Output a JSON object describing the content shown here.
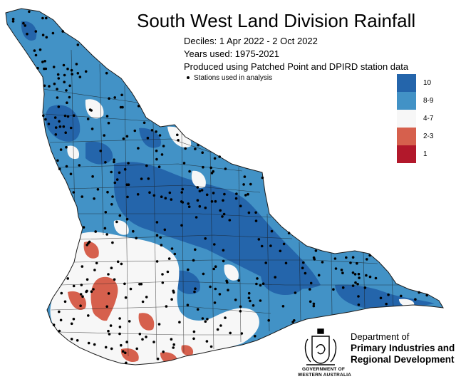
{
  "title": "South West Land Division Rainfall",
  "subtitle": {
    "period": "Deciles:  1 Apr 2022 -  2 Oct 2022",
    "years": "Years used: 1975-2021",
    "source": "Produced using Patched Point and DPIRD station data",
    "stations_note": "Stations used in analysis"
  },
  "legend": [
    {
      "label": "10",
      "color": "#2465ab"
    },
    {
      "label": "8-9",
      "color": "#4292c6"
    },
    {
      "label": "4-7",
      "color": "#f7f7f7"
    },
    {
      "label": "2-3",
      "color": "#d6604d"
    },
    {
      "label": "1",
      "color": "#b2182b"
    }
  ],
  "logo": {
    "line1": "Department of",
    "line2": "Primary Industries and",
    "line3": "Regional Development",
    "gov1": "GOVERNMENT OF",
    "gov2": "WESTERN AUSTRALIA"
  },
  "colors": {
    "decile_10": "#2465ab",
    "decile_8_9": "#4292c6",
    "decile_4_7": "#f7f7f7",
    "decile_2_3": "#d6604d",
    "decile_1": "#b2182b",
    "boundary": "#1a1a1a"
  }
}
